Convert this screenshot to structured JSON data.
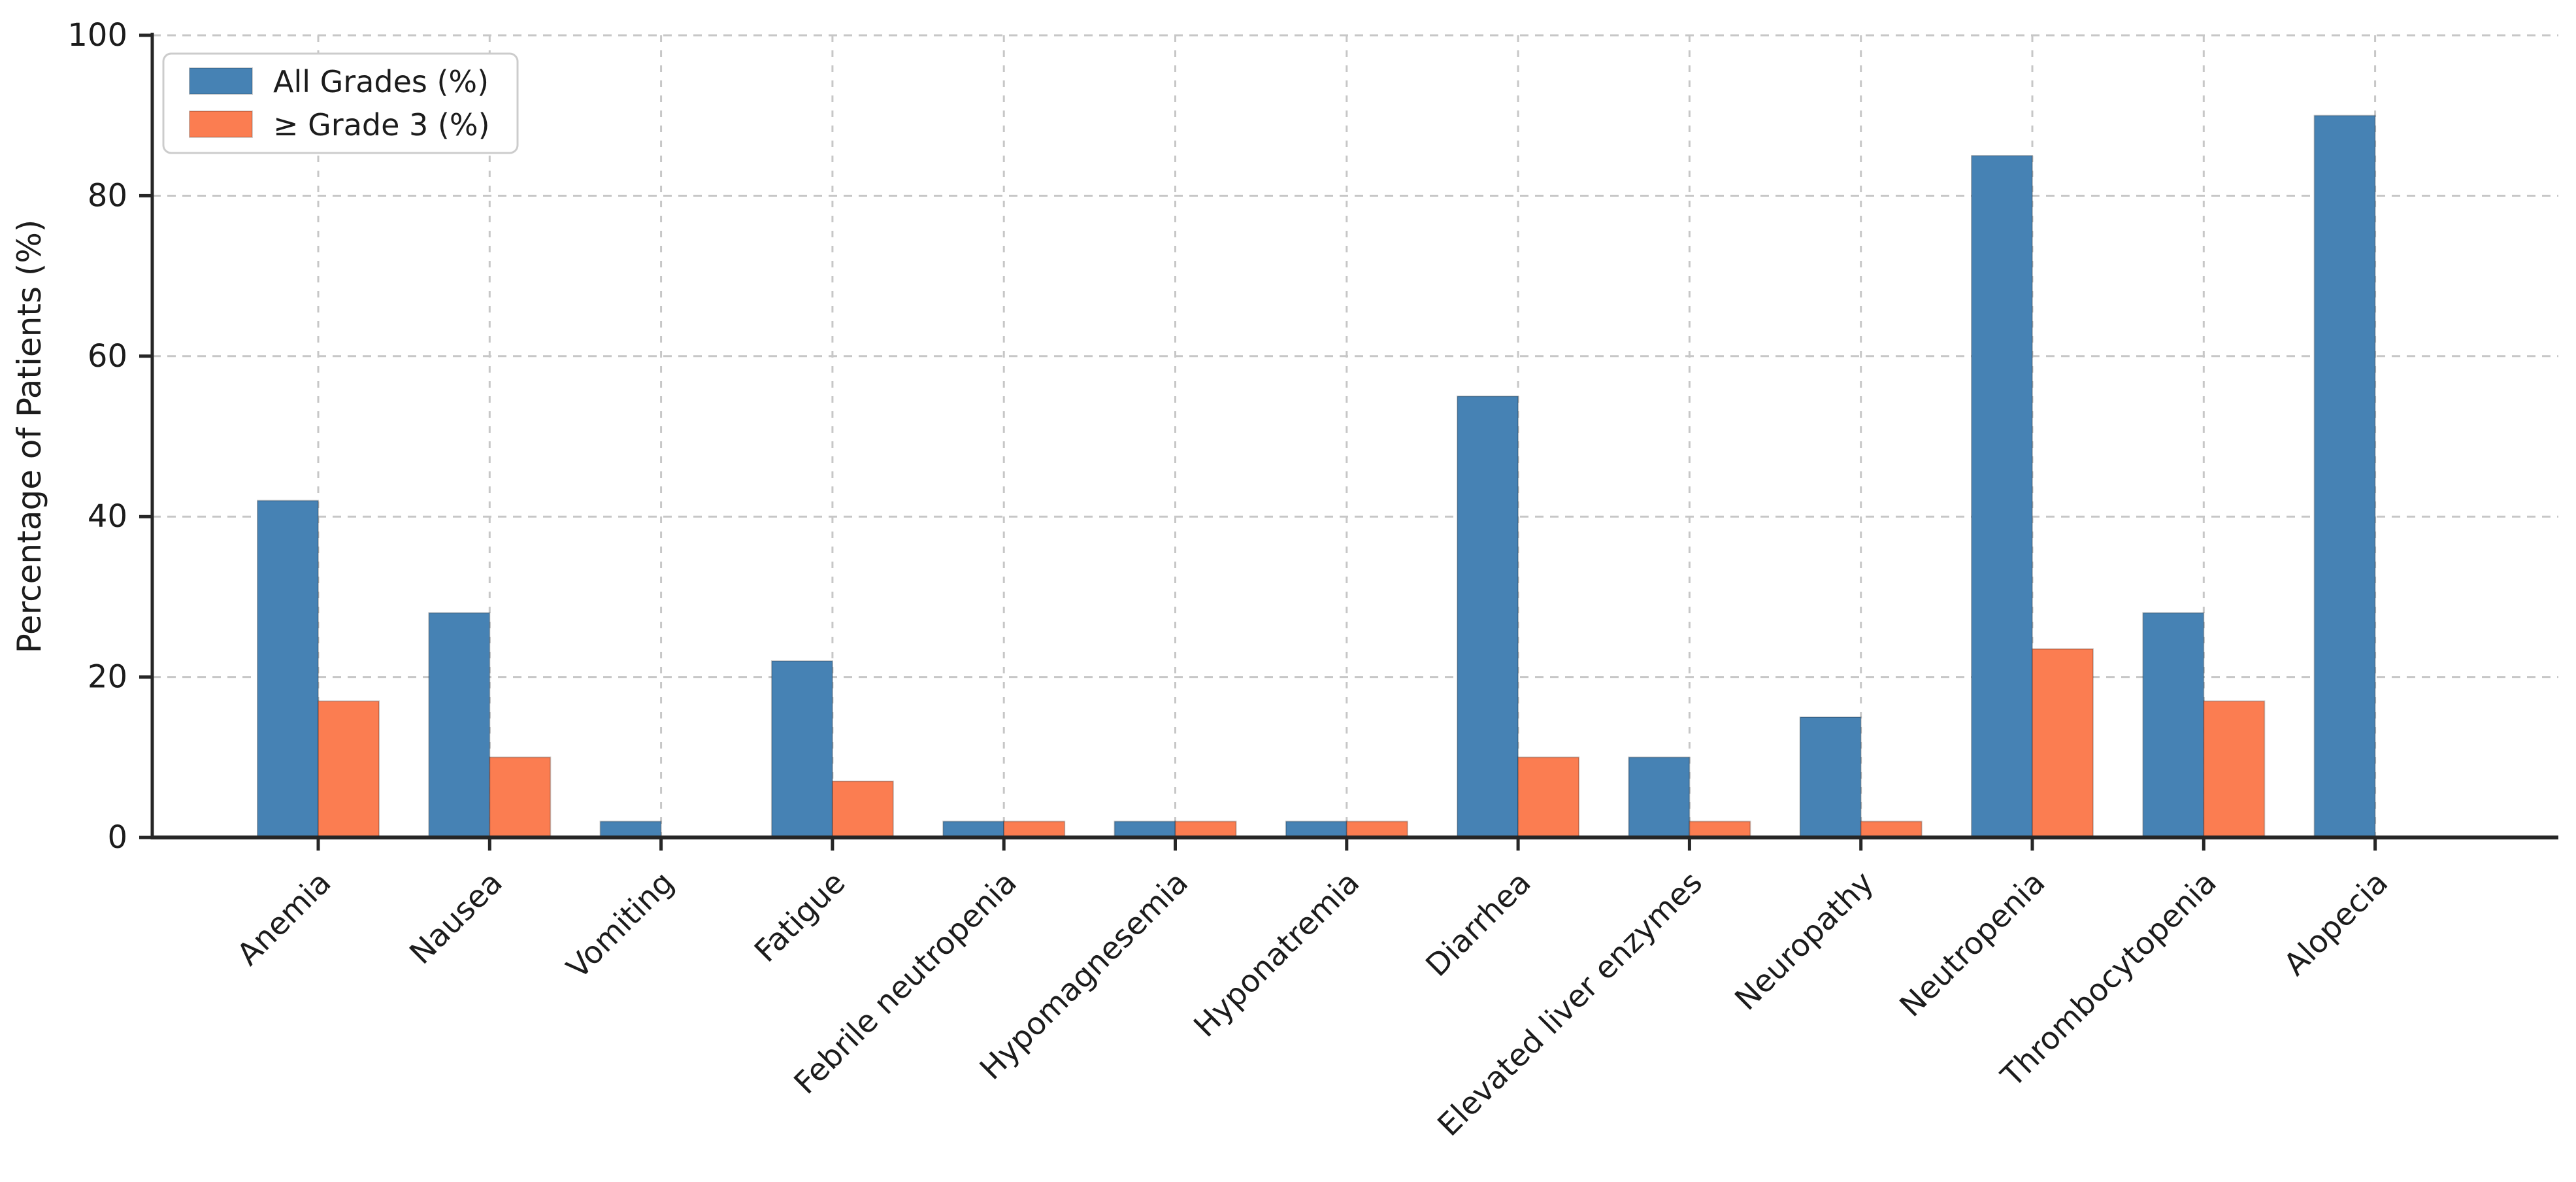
{
  "chart_data": {
    "type": "bar",
    "title": "",
    "xlabel": "",
    "ylabel": "Percentage of Patients (%)",
    "ylim": [
      0,
      100
    ],
    "yticks": [
      0,
      20,
      40,
      60,
      80,
      100
    ],
    "grid": {
      "visible": true,
      "style": "dashed",
      "axes": "both",
      "color": "#c7c7c7"
    },
    "legend_position": "upper-left",
    "categories": [
      "Anemia",
      "Nausea",
      "Vomiting",
      "Fatigue",
      "Febrile neutropenia",
      "Hypomagnesemia",
      "Hyponatremia",
      "Diarrhea",
      "Elevated liver enzymes",
      "Neuropathy",
      "Neutropenia",
      "Thrombocytopenia",
      "Alopecia"
    ],
    "series": [
      {
        "name": "All Grades (%)",
        "color": "#4682B4",
        "values": [
          42,
          28,
          2,
          22,
          2,
          2,
          2,
          55,
          10,
          15,
          85,
          28,
          90
        ]
      },
      {
        "name": "≥ Grade 3 (%)",
        "color": "#FB7D51",
        "values": [
          17,
          10,
          0,
          7,
          2,
          2,
          2,
          10,
          2,
          2,
          23.5,
          17,
          0
        ]
      }
    ]
  },
  "colors": {
    "axis": "#262626",
    "grid": "#c7c7c7",
    "text": "#1c1c1c",
    "legend_border": "#cccccc",
    "background": "#ffffff"
  }
}
